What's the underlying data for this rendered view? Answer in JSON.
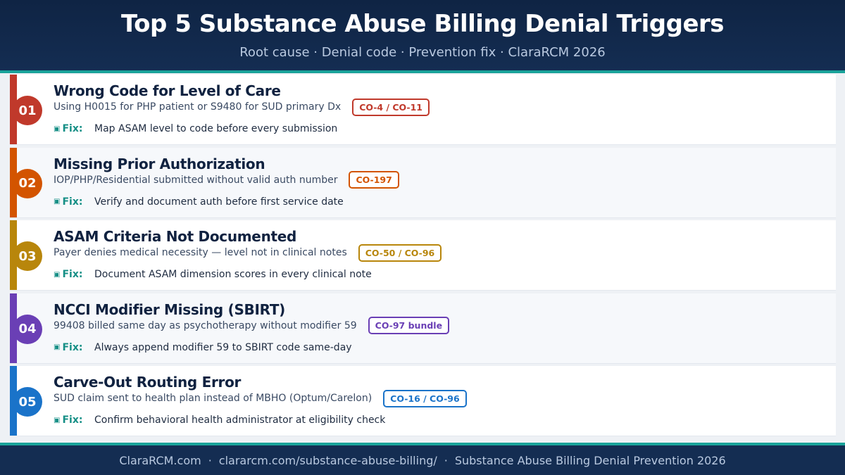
{
  "header": {
    "title": "Top 5 Substance Abuse Billing Denial Triggers",
    "subtitle": "Root cause  ·  Denial code  ·  Prevention fix  ·  ClaraRCM 2026"
  },
  "fix_label": "Fix:",
  "fix_icon": "wrench-icon",
  "items": [
    {
      "number": "01",
      "title": "Wrong Code for Level of Care",
      "description": "Using H0015 for PHP patient or S9480 for SUD primary Dx",
      "code": "CO-4 / CO-11",
      "fix": "Map ASAM level to code before every submission",
      "color": "#c0392b"
    },
    {
      "number": "02",
      "title": "Missing Prior Authorization",
      "description": "IOP/PHP/Residential submitted without valid auth number",
      "code": "CO-197",
      "fix": "Verify and document auth before first service date",
      "color": "#d35400"
    },
    {
      "number": "03",
      "title": "ASAM Criteria Not Documented",
      "description": "Payer denies medical necessity — level not in clinical notes",
      "code": "CO-50 / CO-96",
      "fix": "Document ASAM dimension scores in every clinical note",
      "color": "#b8860b"
    },
    {
      "number": "04",
      "title": "NCCI Modifier Missing (SBIRT)",
      "description": "99408 billed same day as psychotherapy without modifier 59",
      "code": "CO-97 bundle",
      "fix": "Always append modifier 59 to SBIRT code same-day",
      "color": "#6a3fb5"
    },
    {
      "number": "05",
      "title": "Carve-Out Routing Error",
      "description": "SUD claim sent to health plan instead of MBHO (Optum/Carelon)",
      "code": "CO-16 / CO-96",
      "fix": "Confirm behavioral health administrator at eligibility check",
      "color": "#1a73c9"
    }
  ],
  "footer": {
    "brand": "ClaraRCM.com",
    "url": "clararcm.com/substance-abuse-billing/",
    "caption": "Substance Abuse Billing Denial Prevention 2026",
    "separator": "·"
  }
}
